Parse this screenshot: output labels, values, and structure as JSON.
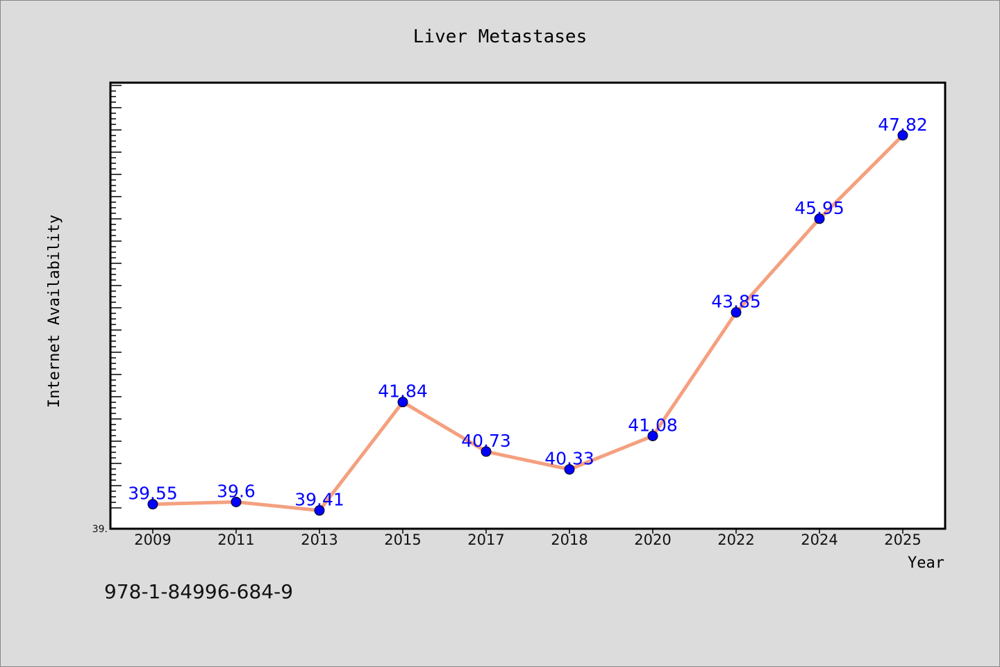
{
  "chart_data": {
    "type": "line",
    "title": "Liver Metastases",
    "xlabel": "Year",
    "ylabel": "Internet Availability",
    "categories": [
      "2009",
      "2011",
      "2013",
      "2015",
      "2017",
      "2018",
      "2020",
      "2022",
      "2024",
      "2025"
    ],
    "series": [
      {
        "values": [
          39.55,
          39.6,
          39.41,
          41.84,
          40.73,
          40.33,
          41.08,
          43.85,
          45.95,
          47.82
        ],
        "data_labels": [
          "39.55",
          "39.6",
          "39.41",
          "41.84",
          "40.73",
          "40.33",
          "41.08",
          "43.85",
          "45.95",
          "47.82"
        ]
      }
    ],
    "ylim": [
      39.0,
      49.0
    ],
    "y_tick_label": "39.",
    "grid": false,
    "legend": "none",
    "colors": {
      "line": "#f4a07f",
      "marker": "#0000ff",
      "labels": "#0000ff",
      "background": "#dcdcdc",
      "plot_area": "#ffffff"
    }
  },
  "footer": {
    "note": "978-1-84996-684-9"
  }
}
